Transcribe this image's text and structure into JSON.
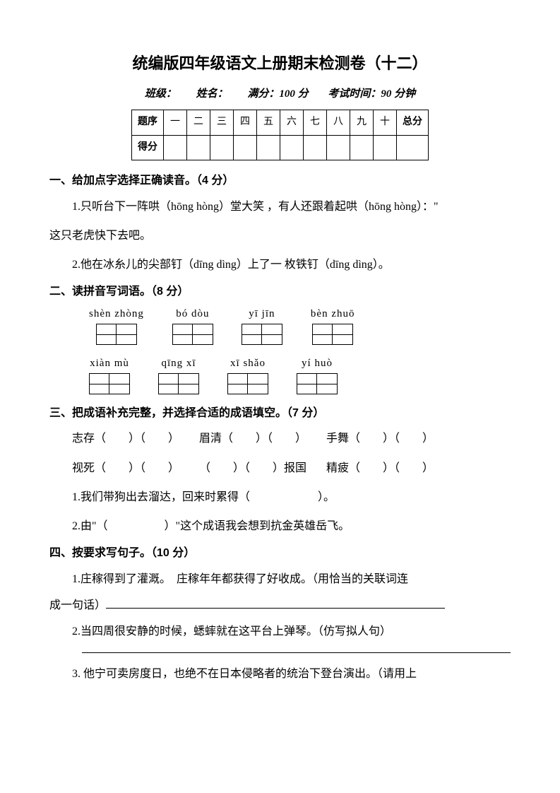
{
  "title": "统编版四年级语文上册期末检测卷（十二）",
  "info": {
    "class_label": "班级：",
    "name_label": "姓名：",
    "fullscore_label": "满分：100 分",
    "time_label": "考试时间：90 分钟"
  },
  "score_table": {
    "header_label": "题序",
    "cols": [
      "一",
      "二",
      "三",
      "四",
      "五",
      "六",
      "七",
      "八",
      "九",
      "十"
    ],
    "total_label": "总分",
    "score_label": "得分"
  },
  "s1": {
    "heading": "一、给加点字选择正确读音。（4 分）",
    "q1a": "1.只听台下一阵哄（hōng hòng）堂大笑 ，有人还跟着起哄（hōng hòng）：\"",
    "q1b": "这只老虎快下去吧。",
    "q2": "2.他在冰糸儿的尖部钉（dīng dìng）上了一 枚铁钉（dīng dìng）。"
  },
  "s2": {
    "heading": "二、读拼音写词语。（8 分）",
    "row1": [
      {
        "pinyin": "shèn zhòng",
        "cells": 2
      },
      {
        "pinyin": "bó dòu",
        "cells": 2
      },
      {
        "pinyin": "yī jīn",
        "cells": 2
      },
      {
        "pinyin": "bèn zhuō",
        "cells": 2
      }
    ],
    "row2": [
      {
        "pinyin": "xiàn mù",
        "cells": 2
      },
      {
        "pinyin": "qīng xī",
        "cells": 2
      },
      {
        "pinyin": "xī shǎo",
        "cells": 2
      },
      {
        "pinyin": "yí huò",
        "cells": 2
      }
    ]
  },
  "s3": {
    "heading": "三、把成语补充完整，并选择合适的成语填空。（7 分）",
    "line1_a": "志存（　　）（　　）",
    "line1_b": "眉清（　　）（　　）",
    "line1_c": "手舞（　　）（　　）",
    "line2_a": "视死（　　）（　　）",
    "line2_b": "（　　）（　　）报国",
    "line2_c": "精疲（　　）（　　）",
    "q1": "1.我们带狗出去溜达，回来时累得（　　　　　　）。",
    "q2": "2.由\"（　　　　　）\"这个成语我会想到抗金英雄岳飞。"
  },
  "s4": {
    "heading": "四、按要求写句子。（10 分）",
    "q1a": "1.庄稼得到了灌溉。　庄稼年年都获得了好收成。（用恰当的关联词连",
    "q1b": "成一句话）",
    "q2": "2.当四周很安静的时候，蟋蟀就在这平台上弹琴。（仿写拟人句）",
    "q3": "3. 他宁可卖房度日，也绝不在日本侵略者的统治下登台演出。（请用上"
  }
}
